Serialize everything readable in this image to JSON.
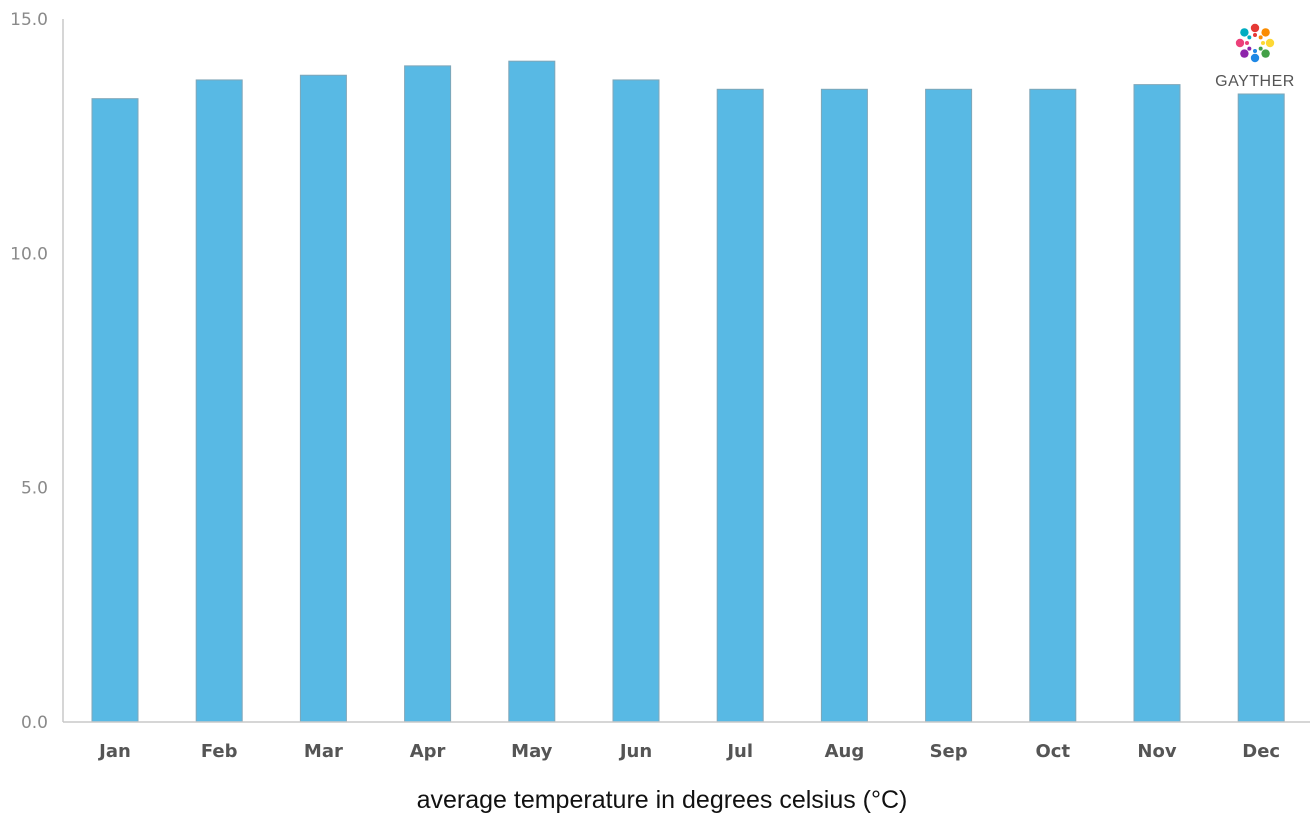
{
  "brand": {
    "logo_text": "GAYTHER",
    "logo_colors": [
      "#e53935",
      "#fb8c00",
      "#fdd835",
      "#43a047",
      "#1e88e5",
      "#8e24aa",
      "#ec407a",
      "#00acc1"
    ]
  },
  "chart_data": {
    "type": "bar",
    "categories": [
      "Jan",
      "Feb",
      "Mar",
      "Apr",
      "May",
      "Jun",
      "Jul",
      "Aug",
      "Sep",
      "Oct",
      "Nov",
      "Dec"
    ],
    "values": [
      13.3,
      13.7,
      13.8,
      14.0,
      14.1,
      13.7,
      13.5,
      13.5,
      13.5,
      13.5,
      13.6,
      13.4
    ],
    "title": "",
    "xlabel": "average temperature in degrees celsius (°C)",
    "ylabel": "",
    "ylim": [
      0,
      15
    ],
    "yticks": [
      0,
      5,
      10,
      15
    ],
    "ytick_labels": [
      "0.0",
      "5.0",
      "10.0",
      "15.0"
    ],
    "grid": false,
    "legend": "none",
    "bar_color": "#58b9e4",
    "bar_edge_color": "#7fa6b8",
    "axis_color": "#c8c8c8"
  }
}
